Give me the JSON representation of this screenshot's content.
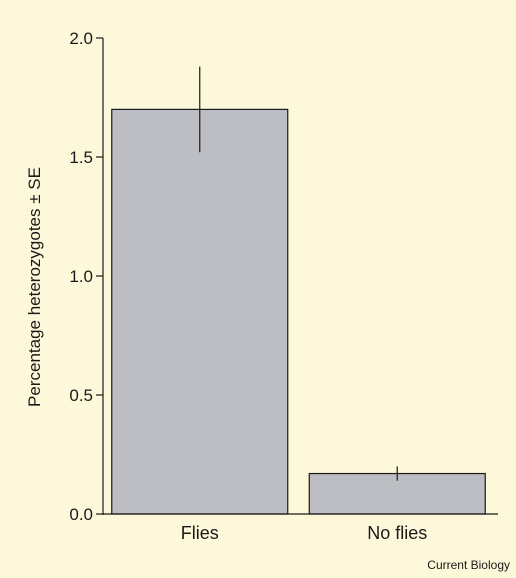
{
  "chart_data": {
    "type": "bar",
    "categories": [
      "Flies",
      "No flies"
    ],
    "values": [
      1.7,
      0.17
    ],
    "error": [
      0.18,
      0.03
    ],
    "ylabel": "Percentage heterozygotes ± SE",
    "xlabel": "",
    "ylim": [
      0,
      2.0
    ],
    "yticks": [
      "0.0",
      "0.5",
      "1.0",
      "1.5",
      "2.0"
    ],
    "bar_color": "#bdbec3",
    "grid": false
  },
  "credit": "Current Biology",
  "colors": {
    "background": "#fdf8da",
    "bar": "#bdbec3",
    "ink": "#1a1a1a"
  }
}
